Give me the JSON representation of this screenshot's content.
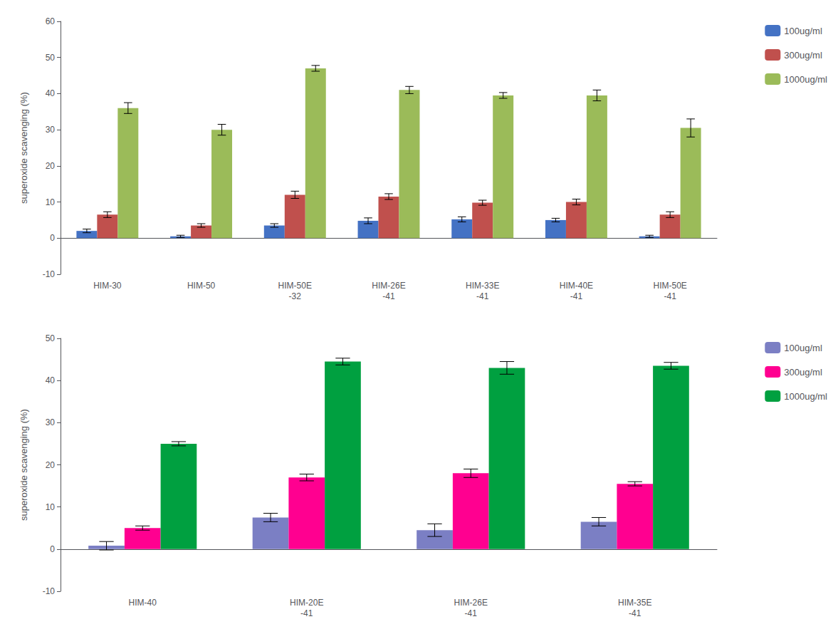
{
  "chart_data": [
    {
      "type": "bar",
      "categories": [
        "HIM-30",
        "HIM-50",
        "HIM-50E\n-32",
        "HIM-26E\n-41",
        "HIM-33E\n-41",
        "HIM-40E\n-41",
        "HIM-50E\n-41"
      ],
      "series": [
        {
          "name": "100ug/ml",
          "color": "#4472C4",
          "values": [
            2.0,
            0.5,
            3.5,
            4.8,
            5.2,
            5.0,
            0.5
          ],
          "errors": [
            0.5,
            0.3,
            0.5,
            0.8,
            0.7,
            0.5,
            0.3
          ]
        },
        {
          "name": "300ug/ml",
          "color": "#C0504D",
          "values": [
            6.5,
            3.5,
            12.0,
            11.5,
            9.8,
            10.0,
            6.5
          ],
          "errors": [
            0.8,
            0.5,
            1.0,
            0.8,
            0.7,
            0.8,
            0.8
          ]
        },
        {
          "name": "1000ug/ml",
          "color": "#9BBB59",
          "values": [
            36.0,
            30.0,
            47.0,
            41.0,
            39.5,
            39.5,
            30.5
          ],
          "errors": [
            1.5,
            1.5,
            0.8,
            1.0,
            0.8,
            1.5,
            2.5
          ]
        }
      ],
      "ylabel": "superoxide scavenging (%)",
      "ylim": [
        -10,
        60
      ],
      "yticks": [
        -10,
        0,
        10,
        20,
        30,
        40,
        50,
        60
      ],
      "grid": false,
      "legend": "right"
    },
    {
      "type": "bar",
      "categories": [
        "HIM-40",
        "HIM-20E\n-41",
        "HIM-26E\n-41",
        "HIM-35E\n-41"
      ],
      "series": [
        {
          "name": "100ug/ml",
          "color": "#7B7FC4",
          "values": [
            0.8,
            7.5,
            4.5,
            6.5
          ],
          "errors": [
            1.0,
            1.0,
            1.5,
            1.0
          ]
        },
        {
          "name": "300ug/ml",
          "color": "#FF0090",
          "values": [
            5.0,
            17.0,
            18.0,
            15.5
          ],
          "errors": [
            0.5,
            0.8,
            1.0,
            0.5
          ]
        },
        {
          "name": "1000ug/ml",
          "color": "#00A040",
          "values": [
            25.0,
            44.5,
            43.0,
            43.5
          ],
          "errors": [
            0.5,
            0.8,
            1.5,
            0.8
          ]
        }
      ],
      "ylabel": "superoxide scavenging (%)",
      "ylim": [
        -10,
        50
      ],
      "yticks": [
        -10,
        0,
        10,
        20,
        30,
        40,
        50
      ],
      "grid": false,
      "legend": "right"
    }
  ]
}
